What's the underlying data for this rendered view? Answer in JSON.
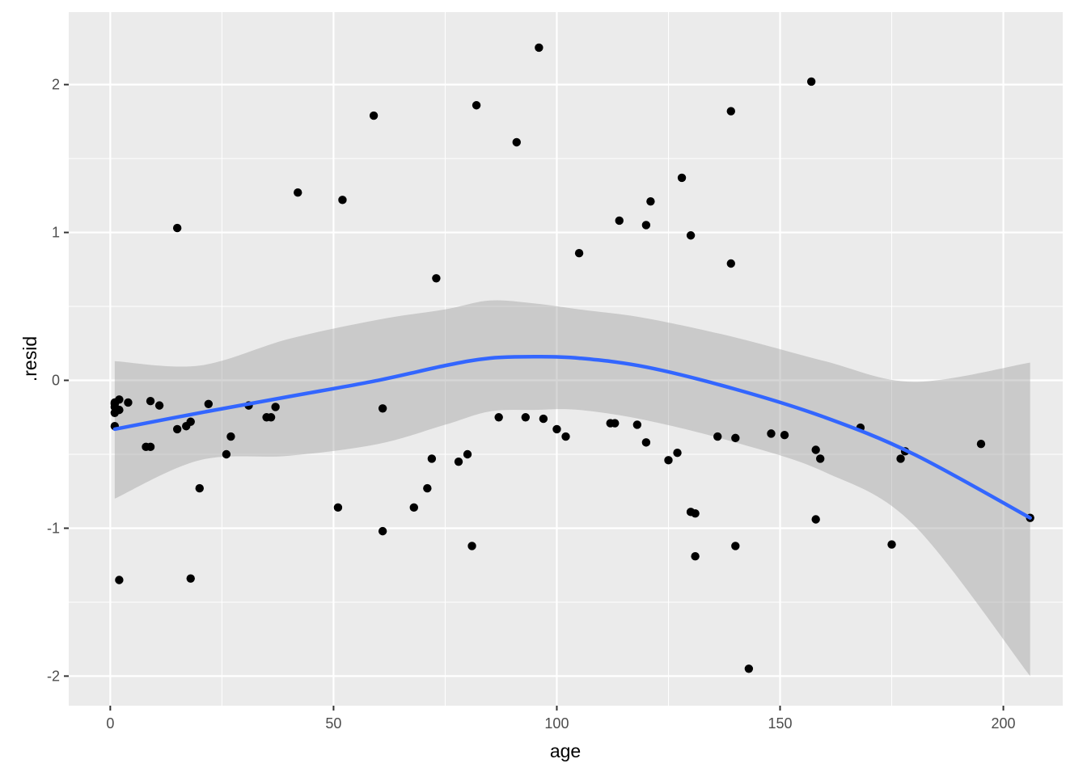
{
  "chart_data": {
    "type": "scatter",
    "title": "",
    "xlabel": "age",
    "ylabel": ".resid",
    "xlim": [
      -9.3,
      213.3
    ],
    "ylim": [
      -2.2,
      2.49
    ],
    "x_ticks": [
      0,
      50,
      100,
      150,
      200
    ],
    "x_tick_labels": [
      "0",
      "50",
      "100",
      "150",
      "200"
    ],
    "y_ticks": [
      -2,
      -1,
      0,
      1,
      2
    ],
    "y_tick_labels": [
      "-2",
      "-1",
      "0",
      "1",
      "2"
    ],
    "grid": true,
    "colors": {
      "panel": "#ebebeb",
      "grid": "#ffffff",
      "point": "#000000",
      "smooth_line": "#3366ff",
      "ribbon": "#999999"
    },
    "points": {
      "x": [
        1,
        1,
        1,
        1,
        1,
        2,
        2,
        2,
        4,
        8,
        9,
        9,
        11,
        15,
        15,
        17,
        18,
        18,
        20,
        22,
        26,
        27,
        31,
        35,
        36,
        37,
        42,
        51,
        52,
        59,
        61,
        61,
        68,
        71,
        72,
        73,
        78,
        80,
        81,
        82,
        87,
        91,
        93,
        96,
        97,
        100,
        102,
        105,
        112,
        113,
        114,
        118,
        120,
        120,
        121,
        125,
        127,
        128,
        130,
        130,
        131,
        131,
        136,
        139,
        139,
        140,
        140,
        143,
        148,
        151,
        157,
        158,
        158,
        159,
        168,
        175,
        177,
        178,
        195,
        206
      ],
      "y": [
        -0.15,
        -0.16,
        -0.18,
        -0.22,
        -0.31,
        -0.13,
        -0.2,
        -1.35,
        -0.15,
        -0.45,
        -0.45,
        -0.14,
        -0.17,
        1.03,
        -0.33,
        -0.31,
        -0.28,
        -1.34,
        -0.73,
        -0.16,
        -0.5,
        -0.38,
        -0.17,
        -0.25,
        -0.25,
        -0.18,
        1.27,
        -0.86,
        1.22,
        1.79,
        -0.19,
        -1.02,
        -0.86,
        -0.73,
        -0.53,
        0.69,
        -0.55,
        -0.5,
        -1.12,
        1.86,
        -0.25,
        1.61,
        -0.25,
        2.25,
        -0.26,
        -0.33,
        -0.38,
        0.86,
        -0.29,
        -0.29,
        1.08,
        -0.3,
        1.05,
        -0.42,
        1.21,
        -0.54,
        -0.49,
        1.37,
        0.98,
        -0.89,
        -0.9,
        -1.19,
        -0.38,
        1.82,
        0.79,
        -0.39,
        -1.12,
        -1.95,
        -0.36,
        -0.37,
        2.02,
        -0.47,
        -0.94,
        -0.53,
        -0.32,
        -1.11,
        -0.53,
        -0.48,
        -0.43,
        -0.93
      ]
    },
    "series": [
      {
        "type": "smooth",
        "x": [
          1,
          20,
          40,
          60,
          75,
          85,
          95,
          105,
          120,
          140,
          160,
          180,
          206
        ],
        "y": [
          -0.33,
          -0.22,
          -0.11,
          0.0,
          0.1,
          0.15,
          0.16,
          0.15,
          0.09,
          -0.06,
          -0.25,
          -0.5,
          -0.93
        ],
        "ymin": [
          -0.8,
          -0.54,
          -0.51,
          -0.43,
          -0.3,
          -0.21,
          -0.2,
          -0.2,
          -0.27,
          -0.42,
          -0.62,
          -0.98,
          -2.0
        ],
        "ymax": [
          0.13,
          0.1,
          0.28,
          0.41,
          0.48,
          0.54,
          0.52,
          0.48,
          0.42,
          0.29,
          0.13,
          -0.01,
          0.12
        ]
      }
    ]
  }
}
